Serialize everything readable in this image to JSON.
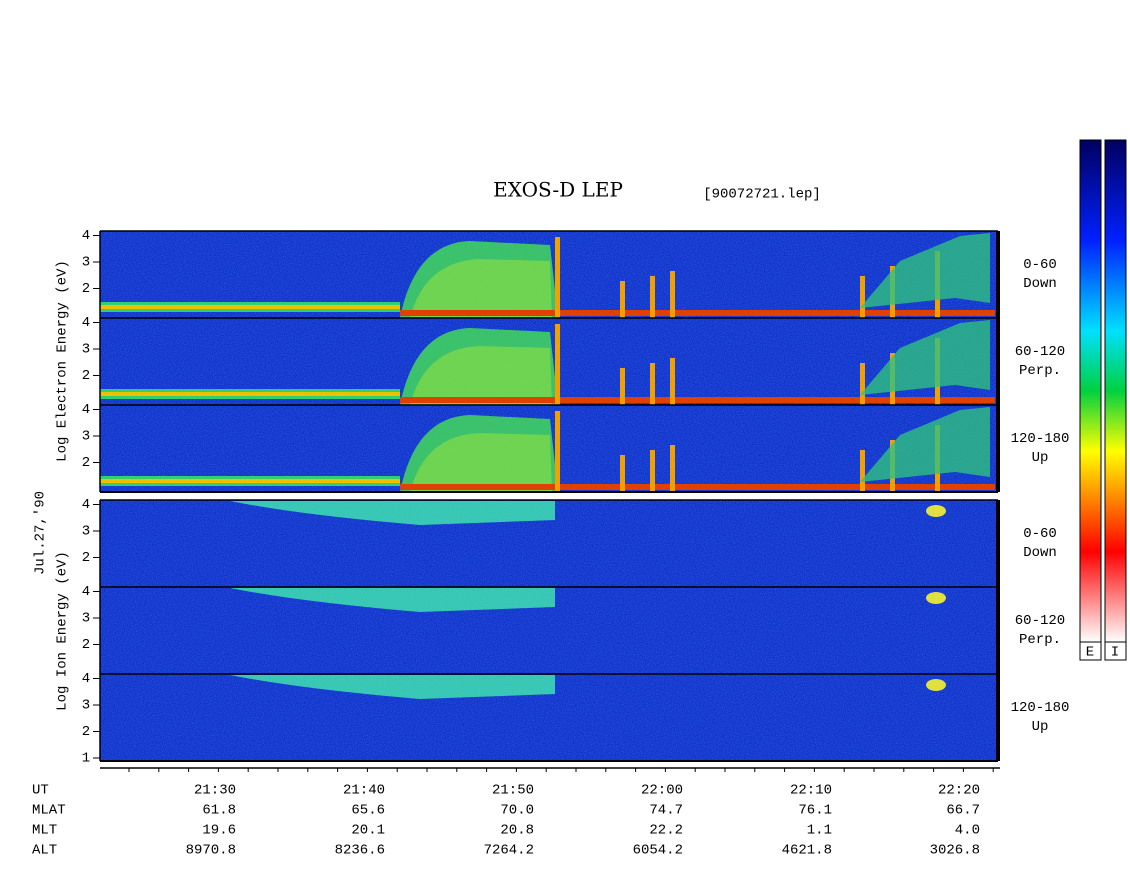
{
  "title": "EXOS-D LEP",
  "file": "[90072721.lep]",
  "date": "Jul.27,'90",
  "electron_axis_label": "Log Electron Energy (eV)",
  "ion_axis_label": "Log Ion Energy (eV)",
  "panels": [
    {
      "species": "electron",
      "angle": "0-60",
      "direction": "Down",
      "yticks": [
        2,
        3,
        4
      ]
    },
    {
      "species": "electron",
      "angle": "60-120",
      "direction": "Perp.",
      "yticks": [
        2,
        3,
        4
      ]
    },
    {
      "species": "electron",
      "angle": "120-180",
      "direction": "Up",
      "yticks": [
        2,
        3,
        4
      ]
    },
    {
      "species": "ion",
      "angle": "0-60",
      "direction": "Down",
      "yticks": [
        2,
        3,
        4
      ]
    },
    {
      "species": "ion",
      "angle": "60-120",
      "direction": "Perp.",
      "yticks": [
        2,
        3,
        4
      ]
    },
    {
      "species": "ion",
      "angle": "120-180",
      "direction": "Up",
      "yticks": [
        1,
        2,
        3,
        4
      ]
    }
  ],
  "time_table": [
    {
      "name": "UT",
      "values": [
        "21:30",
        "21:40",
        "21:50",
        "22:00",
        "22:10",
        "22:20"
      ]
    },
    {
      "name": "MLAT",
      "values": [
        "61.8",
        "65.6",
        "70.0",
        "74.7",
        "76.1",
        "66.7"
      ]
    },
    {
      "name": "MLT",
      "values": [
        "19.6",
        "20.1",
        "20.8",
        "22.2",
        "1.1",
        "4.0"
      ]
    },
    {
      "name": "ALT",
      "values": [
        "8970.8",
        "8236.6",
        "7264.2",
        "6054.2",
        "4621.8",
        "3026.8"
      ]
    }
  ],
  "colorbar_labels": [
    "E",
    "I"
  ]
}
